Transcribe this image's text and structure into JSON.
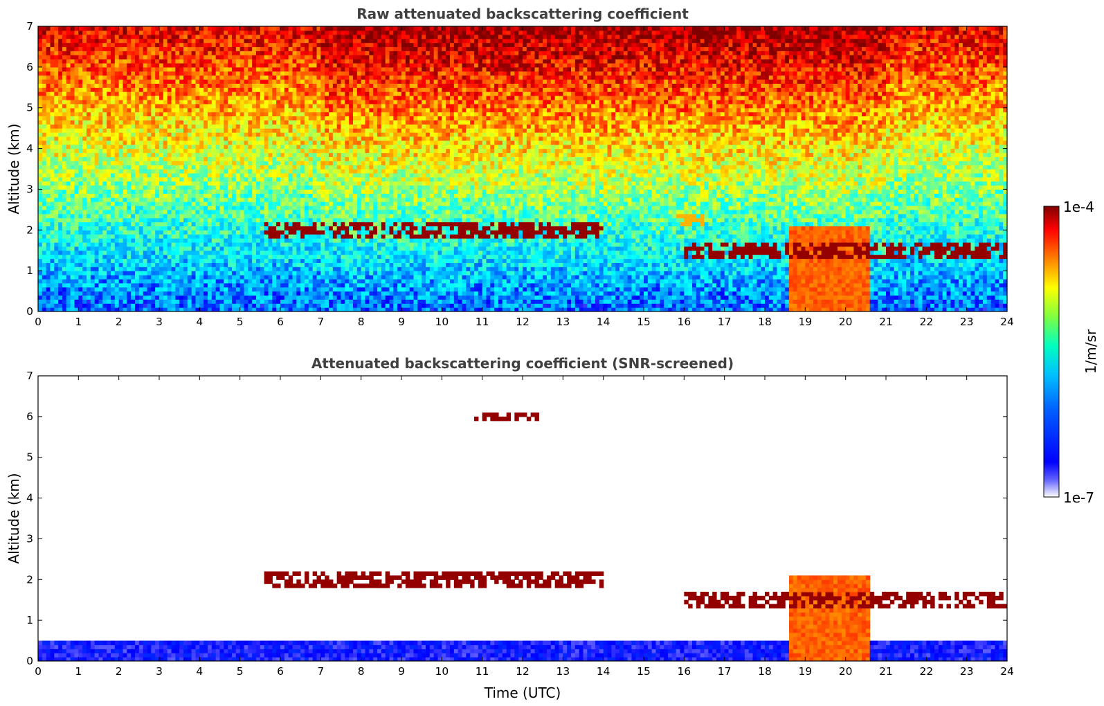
{
  "chart_data": [
    {
      "type": "heatmap",
      "title": "Raw attenuated backscattering coefficient",
      "xlabel": "",
      "ylabel": "Altitude (km)",
      "xlim": [
        0,
        24
      ],
      "ylim": [
        0,
        7
      ],
      "x_ticks": [
        "0",
        "1",
        "2",
        "3",
        "4",
        "5",
        "6",
        "7",
        "8",
        "9",
        "10",
        "11",
        "12",
        "13",
        "14",
        "15",
        "16",
        "17",
        "18",
        "19",
        "20",
        "21",
        "22",
        "23",
        "24"
      ],
      "y_ticks": [
        "0",
        "1",
        "2",
        "3",
        "4",
        "5",
        "6",
        "7"
      ],
      "features": [
        {
          "kind": "near-surface layer",
          "t_start": 0,
          "t_end": 24,
          "top_km": 0.4,
          "level": 0.12
        },
        {
          "kind": "cloud layer",
          "t_start": 5.6,
          "t_end": 14.0,
          "alt_km": 2.0,
          "level": 0.98
        },
        {
          "kind": "cloud",
          "t_start": 10.8,
          "t_end": 12.4,
          "alt_km": 6.0,
          "level": 0.98
        },
        {
          "kind": "cloud",
          "t_start": 15.8,
          "t_end": 16.5,
          "alt_km": 2.2,
          "level": 0.7
        },
        {
          "kind": "precipitation",
          "t_start": 18.6,
          "t_end": 20.6,
          "top_km": 2.1,
          "level": 0.78
        },
        {
          "kind": "cloud base",
          "t_start": 16.0,
          "t_end": 24,
          "alt_km": 1.5,
          "level": 0.98
        }
      ]
    },
    {
      "type": "heatmap",
      "title": "Attenuated backscattering coefficient (SNR-screened)",
      "xlabel": "Time (UTC)",
      "ylabel": "Altitude (km)",
      "xlim": [
        0,
        24
      ],
      "ylim": [
        0,
        7
      ],
      "x_ticks": [
        "0",
        "1",
        "2",
        "3",
        "4",
        "5",
        "6",
        "7",
        "8",
        "9",
        "10",
        "11",
        "12",
        "13",
        "14",
        "15",
        "16",
        "17",
        "18",
        "19",
        "20",
        "21",
        "22",
        "23",
        "24"
      ],
      "y_ticks": [
        "0",
        "1",
        "2",
        "3",
        "4",
        "5",
        "6",
        "7"
      ],
      "features": [
        {
          "kind": "near-surface layer",
          "t_start": 0,
          "t_end": 24,
          "top_km": 0.45,
          "level": 0.12
        },
        {
          "kind": "cloud layer",
          "t_start": 5.6,
          "t_end": 14.0,
          "alt_km": 2.0,
          "level": 0.98
        },
        {
          "kind": "cloud",
          "t_start": 10.8,
          "t_end": 12.4,
          "alt_km": 6.0,
          "level": 0.98
        },
        {
          "kind": "precipitation",
          "t_start": 18.6,
          "t_end": 20.6,
          "top_km": 2.1,
          "level": 0.78
        },
        {
          "kind": "cloud base",
          "t_start": 16.0,
          "t_end": 24,
          "alt_km": 1.5,
          "level": 0.98
        }
      ]
    }
  ],
  "colorbar": {
    "label": "1/m/sr",
    "max_label": "1e-4",
    "min_label": "1e-7",
    "colormap": "jet",
    "stops": [
      "#ffffff",
      "#0000ff",
      "#00a0ff",
      "#00ffff",
      "#80ff80",
      "#ffff00",
      "#ff8000",
      "#ff0000",
      "#800000"
    ]
  }
}
